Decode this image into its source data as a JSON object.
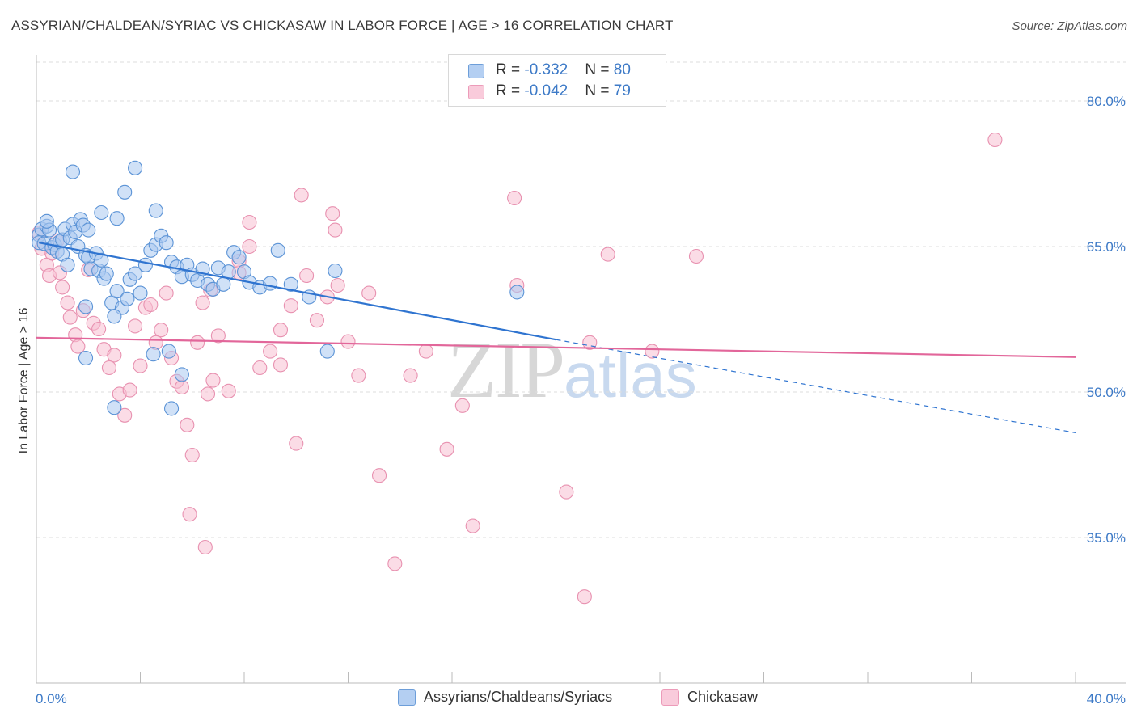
{
  "title": "ASSYRIAN/CHALDEAN/SYRIAC VS CHICKASAW IN LABOR FORCE | AGE > 16 CORRELATION CHART",
  "source": "Source: ZipAtlas.com",
  "watermark": {
    "zip": "ZIP",
    "atlas": "atlas"
  },
  "colors": {
    "blue_fill": "#a9c8f0",
    "blue_stroke": "#5b93d6",
    "blue_line": "#2f74d0",
    "pink_fill": "#f7bfd1",
    "pink_stroke": "#e891b0",
    "pink_line": "#e2669a",
    "axis_text": "#3d7ac7",
    "grid": "#dddddd"
  },
  "legend": {
    "rows": [
      {
        "r_label": "R = ",
        "r_value": "-0.332",
        "n_label": "N = ",
        "n_value": "80"
      },
      {
        "r_label": "R = ",
        "r_value": "-0.042",
        "n_label": "N = ",
        "n_value": "79"
      }
    ]
  },
  "bottom_legend": [
    "Assyrians/Chaldeans/Syriacs",
    "Chickasaw"
  ],
  "chart_data": {
    "type": "scatter",
    "title": "ASSYRIAN/CHALDEAN/SYRIAC VS CHICKASAW IN LABOR FORCE | AGE > 16 CORRELATION CHART",
    "xlabel": "",
    "ylabel": "In Labor Force | Age > 16",
    "xlim": [
      0,
      40
    ],
    "ylim": [
      20,
      84
    ],
    "x_tick_labels": [
      "0.0%",
      "40.0%"
    ],
    "y_ticks": [
      35,
      50,
      65,
      80
    ],
    "y_tick_labels": [
      "35.0%",
      "50.0%",
      "65.0%",
      "80.0%"
    ],
    "grid": true,
    "series": [
      {
        "name": "Assyrians/Chaldeans/Syriacs",
        "R": -0.332,
        "N": 80,
        "trend": {
          "x0": 0.1,
          "y0": 65.4,
          "x1": 20.0,
          "y1": 55.4,
          "dash_to_x": 40.0,
          "dash_to_y": 45.8
        },
        "points": [
          [
            0.1,
            66.2
          ],
          [
            0.1,
            65.4
          ],
          [
            0.2,
            66.8
          ],
          [
            0.3,
            65.3
          ],
          [
            0.4,
            67.1
          ],
          [
            0.5,
            66.7
          ],
          [
            0.6,
            64.9
          ],
          [
            0.4,
            67.6
          ],
          [
            0.7,
            65.2
          ],
          [
            0.8,
            64.5
          ],
          [
            0.9,
            65.5
          ],
          [
            1.0,
            65.7
          ],
          [
            1.0,
            64.2
          ],
          [
            1.1,
            66.8
          ],
          [
            1.3,
            65.9
          ],
          [
            1.4,
            67.3
          ],
          [
            1.5,
            66.5
          ],
          [
            1.6,
            65.0
          ],
          [
            1.7,
            67.8
          ],
          [
            1.8,
            67.2
          ],
          [
            1.9,
            64.1
          ],
          [
            2.0,
            63.9
          ],
          [
            2.1,
            62.7
          ],
          [
            2.3,
            64.3
          ],
          [
            2.4,
            62.5
          ],
          [
            2.5,
            63.6
          ],
          [
            2.6,
            61.7
          ],
          [
            2.7,
            62.2
          ],
          [
            2.9,
            59.2
          ],
          [
            3.1,
            60.4
          ],
          [
            3.3,
            58.7
          ],
          [
            3.5,
            59.6
          ],
          [
            3.6,
            61.6
          ],
          [
            3.8,
            62.2
          ],
          [
            4.0,
            60.2
          ],
          [
            4.2,
            63.1
          ],
          [
            4.4,
            64.6
          ],
          [
            4.6,
            65.2
          ],
          [
            4.8,
            66.1
          ],
          [
            5.0,
            65.4
          ],
          [
            5.2,
            63.4
          ],
          [
            5.4,
            62.9
          ],
          [
            5.6,
            61.9
          ],
          [
            5.8,
            63.1
          ],
          [
            6.0,
            62.1
          ],
          [
            6.2,
            61.5
          ],
          [
            6.4,
            62.7
          ],
          [
            6.6,
            61.1
          ],
          [
            6.8,
            60.6
          ],
          [
            7.0,
            62.8
          ],
          [
            7.2,
            61.1
          ],
          [
            7.4,
            62.4
          ],
          [
            7.6,
            64.4
          ],
          [
            7.8,
            63.9
          ],
          [
            8.0,
            62.4
          ],
          [
            8.2,
            61.3
          ],
          [
            8.6,
            60.8
          ],
          [
            9.0,
            61.2
          ],
          [
            9.3,
            64.6
          ],
          [
            9.8,
            61.1
          ],
          [
            10.5,
            59.8
          ],
          [
            11.2,
            54.2
          ],
          [
            11.5,
            62.5
          ],
          [
            1.4,
            72.7
          ],
          [
            3.8,
            73.1
          ],
          [
            2.5,
            68.5
          ],
          [
            3.4,
            70.6
          ],
          [
            4.6,
            68.7
          ],
          [
            2.0,
            66.7
          ],
          [
            3.1,
            67.9
          ],
          [
            1.9,
            58.8
          ],
          [
            1.9,
            53.5
          ],
          [
            3.0,
            57.8
          ],
          [
            4.5,
            53.9
          ],
          [
            5.1,
            54.2
          ],
          [
            3.0,
            48.4
          ],
          [
            5.2,
            48.3
          ],
          [
            5.6,
            51.8
          ],
          [
            18.5,
            60.3
          ],
          [
            1.2,
            63.1
          ]
        ]
      },
      {
        "name": "Chickasaw",
        "R": -0.042,
        "N": 79,
        "trend": {
          "x0": 0.0,
          "y0": 55.6,
          "x1": 40.0,
          "y1": 53.6
        },
        "points": [
          [
            0.1,
            66.4
          ],
          [
            0.2,
            64.8
          ],
          [
            0.4,
            63.1
          ],
          [
            0.5,
            62.0
          ],
          [
            0.6,
            64.3
          ],
          [
            0.8,
            65.6
          ],
          [
            0.9,
            62.3
          ],
          [
            1.0,
            60.8
          ],
          [
            1.2,
            59.2
          ],
          [
            1.3,
            57.7
          ],
          [
            1.5,
            55.9
          ],
          [
            1.6,
            54.7
          ],
          [
            1.8,
            58.4
          ],
          [
            2.0,
            62.6
          ],
          [
            2.2,
            57.1
          ],
          [
            2.4,
            56.5
          ],
          [
            2.6,
            54.4
          ],
          [
            2.8,
            52.5
          ],
          [
            3.0,
            53.8
          ],
          [
            3.2,
            49.8
          ],
          [
            3.4,
            47.6
          ],
          [
            3.6,
            50.2
          ],
          [
            3.8,
            56.8
          ],
          [
            4.0,
            52.7
          ],
          [
            4.2,
            58.7
          ],
          [
            4.4,
            59.0
          ],
          [
            4.6,
            55.1
          ],
          [
            4.8,
            56.4
          ],
          [
            5.0,
            60.2
          ],
          [
            5.2,
            53.5
          ],
          [
            5.4,
            51.1
          ],
          [
            5.6,
            50.5
          ],
          [
            5.8,
            46.6
          ],
          [
            6.0,
            43.5
          ],
          [
            6.2,
            55.1
          ],
          [
            6.4,
            59.2
          ],
          [
            6.6,
            49.8
          ],
          [
            6.8,
            51.2
          ],
          [
            7.0,
            55.8
          ],
          [
            7.4,
            50.1
          ],
          [
            7.8,
            62.3
          ],
          [
            8.2,
            67.5
          ],
          [
            8.6,
            52.5
          ],
          [
            9.0,
            54.2
          ],
          [
            9.4,
            56.4
          ],
          [
            9.8,
            58.9
          ],
          [
            10.0,
            44.7
          ],
          [
            10.4,
            62.0
          ],
          [
            10.8,
            57.4
          ],
          [
            11.2,
            59.8
          ],
          [
            11.6,
            61.0
          ],
          [
            12.0,
            55.2
          ],
          [
            12.4,
            51.7
          ],
          [
            12.8,
            60.2
          ],
          [
            13.2,
            41.4
          ],
          [
            13.8,
            32.3
          ],
          [
            14.4,
            51.7
          ],
          [
            15.0,
            54.2
          ],
          [
            15.8,
            44.1
          ],
          [
            16.4,
            48.6
          ],
          [
            16.8,
            36.2
          ],
          [
            18.4,
            70.0
          ],
          [
            18.5,
            61.0
          ],
          [
            20.4,
            39.7
          ],
          [
            21.1,
            28.9
          ],
          [
            21.3,
            55.1
          ],
          [
            22.0,
            64.2
          ],
          [
            23.7,
            54.2
          ],
          [
            25.4,
            64.0
          ],
          [
            36.9,
            76.0
          ],
          [
            10.2,
            70.3
          ],
          [
            11.4,
            68.4
          ],
          [
            11.5,
            66.7
          ],
          [
            8.2,
            65.0
          ],
          [
            7.8,
            63.5
          ],
          [
            6.7,
            60.5
          ],
          [
            9.4,
            52.8
          ],
          [
            5.9,
            37.4
          ],
          [
            6.5,
            34.0
          ]
        ]
      }
    ]
  }
}
